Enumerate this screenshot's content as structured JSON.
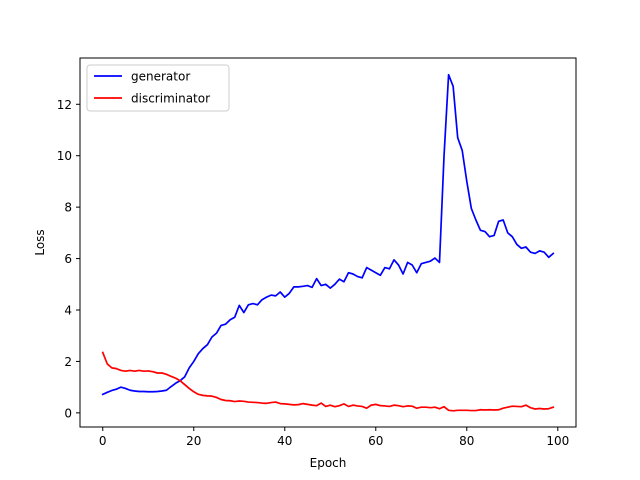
{
  "chart_data": {
    "type": "line",
    "title": "",
    "xlabel": "Epoch",
    "ylabel": "Loss",
    "xlim": [
      -5,
      104
    ],
    "ylim": [
      -0.55,
      13.8
    ],
    "xticks": [
      0,
      20,
      40,
      60,
      80,
      100
    ],
    "yticks": [
      0,
      2,
      4,
      6,
      8,
      10,
      12
    ],
    "grid": false,
    "legend_position": "top-left",
    "x": [
      0,
      1,
      2,
      3,
      4,
      5,
      6,
      7,
      8,
      9,
      10,
      11,
      12,
      13,
      14,
      15,
      16,
      17,
      18,
      19,
      20,
      21,
      22,
      23,
      24,
      25,
      26,
      27,
      28,
      29,
      30,
      31,
      32,
      33,
      34,
      35,
      36,
      37,
      38,
      39,
      40,
      41,
      42,
      43,
      44,
      45,
      46,
      47,
      48,
      49,
      50,
      51,
      52,
      53,
      54,
      55,
      56,
      57,
      58,
      59,
      60,
      61,
      62,
      63,
      64,
      65,
      66,
      67,
      68,
      69,
      70,
      71,
      72,
      73,
      74,
      75,
      76,
      77,
      78,
      79,
      80,
      81,
      82,
      83,
      84,
      85,
      86,
      87,
      88,
      89,
      90,
      91,
      92,
      93,
      94,
      95,
      96,
      97,
      98,
      99
    ],
    "series": [
      {
        "name": "generator",
        "color": "#0000ff",
        "values": [
          0.72,
          0.8,
          0.87,
          0.92,
          1.0,
          0.95,
          0.88,
          0.85,
          0.83,
          0.83,
          0.82,
          0.82,
          0.83,
          0.85,
          0.88,
          1.02,
          1.15,
          1.25,
          1.4,
          1.75,
          2.0,
          2.3,
          2.5,
          2.65,
          2.95,
          3.1,
          3.4,
          3.45,
          3.62,
          3.72,
          4.18,
          3.9,
          4.2,
          4.25,
          4.2,
          4.4,
          4.5,
          4.58,
          4.55,
          4.7,
          4.5,
          4.65,
          4.9,
          4.9,
          4.92,
          4.95,
          4.88,
          5.22,
          4.95,
          5.0,
          4.85,
          5.0,
          5.2,
          5.1,
          5.45,
          5.4,
          5.3,
          5.25,
          5.65,
          5.55,
          5.45,
          5.35,
          5.65,
          5.6,
          5.95,
          5.75,
          5.4,
          5.85,
          5.75,
          5.45,
          5.8,
          5.85,
          5.9,
          6.02,
          5.85,
          10.0,
          13.15,
          12.7,
          10.7,
          10.2,
          9.0,
          7.95,
          7.5,
          7.1,
          7.05,
          6.85,
          6.9,
          7.45,
          7.5,
          7.0,
          6.85,
          6.55,
          6.4,
          6.45,
          6.25,
          6.2,
          6.3,
          6.25,
          6.05,
          6.2
        ]
      },
      {
        "name": "discriminator",
        "color": "#ff0000",
        "values": [
          2.35,
          1.9,
          1.75,
          1.72,
          1.65,
          1.62,
          1.65,
          1.62,
          1.65,
          1.62,
          1.63,
          1.6,
          1.55,
          1.55,
          1.5,
          1.42,
          1.35,
          1.25,
          1.1,
          0.95,
          0.82,
          0.72,
          0.68,
          0.66,
          0.65,
          0.6,
          0.52,
          0.48,
          0.47,
          0.44,
          0.46,
          0.45,
          0.42,
          0.41,
          0.4,
          0.38,
          0.37,
          0.4,
          0.42,
          0.36,
          0.35,
          0.33,
          0.31,
          0.32,
          0.36,
          0.33,
          0.3,
          0.28,
          0.38,
          0.25,
          0.3,
          0.24,
          0.28,
          0.35,
          0.25,
          0.3,
          0.27,
          0.25,
          0.18,
          0.3,
          0.33,
          0.28,
          0.27,
          0.25,
          0.3,
          0.28,
          0.24,
          0.27,
          0.26,
          0.18,
          0.22,
          0.22,
          0.2,
          0.22,
          0.16,
          0.24,
          0.1,
          0.08,
          0.1,
          0.1,
          0.1,
          0.09,
          0.09,
          0.12,
          0.11,
          0.12,
          0.11,
          0.12,
          0.18,
          0.22,
          0.26,
          0.25,
          0.24,
          0.3,
          0.2,
          0.15,
          0.17,
          0.15,
          0.16,
          0.22
        ]
      }
    ]
  }
}
